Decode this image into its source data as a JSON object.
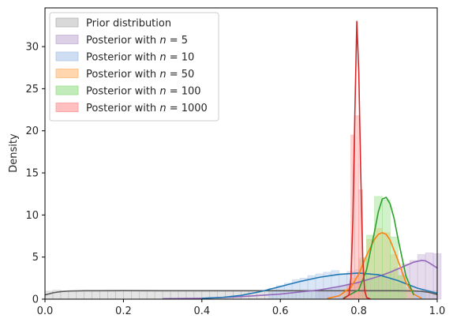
{
  "chart_data": {
    "type": "area",
    "title": "",
    "xlabel": "",
    "ylabel": "Density",
    "xlim": [
      0.0,
      1.0
    ],
    "ylim": [
      0,
      34.6
    ],
    "x_ticks": [
      "0.0",
      "0.2",
      "0.4",
      "0.6",
      "0.8",
      "1.0"
    ],
    "y_ticks": [
      "0",
      "5",
      "10",
      "15",
      "20",
      "25",
      "30"
    ],
    "grid": false,
    "legend_position": "top-left",
    "series": [
      {
        "name": "Prior distribution",
        "name_prefix": "Prior distribution",
        "name_n": "",
        "color": "#595959",
        "hist_color": "#b3b3b3",
        "curve": {
          "x": [
            0.0,
            0.02,
            0.04,
            0.06,
            0.1,
            0.2,
            0.3,
            0.4,
            0.5,
            0.6,
            0.7,
            0.8,
            0.9,
            0.94,
            0.96,
            0.98,
            1.0
          ],
          "y": [
            0.5,
            0.75,
            0.9,
            0.96,
            1.0,
            1.01,
            1.0,
            1.0,
            1.0,
            1.0,
            1.0,
            1.0,
            1.0,
            0.98,
            0.93,
            0.8,
            0.55
          ]
        },
        "hist": {
          "x": [
            0.01,
            0.03,
            0.05,
            0.07,
            0.09,
            0.11,
            0.13,
            0.15,
            0.17,
            0.19,
            0.21,
            0.23,
            0.25,
            0.27,
            0.29,
            0.31,
            0.33,
            0.35,
            0.37,
            0.39,
            0.41,
            0.43,
            0.45,
            0.47,
            0.49,
            0.51,
            0.53,
            0.55,
            0.57,
            0.59,
            0.61,
            0.63,
            0.65,
            0.67,
            0.69,
            0.71,
            0.73,
            0.75,
            0.77,
            0.79,
            0.81,
            0.83,
            0.85,
            0.87,
            0.89,
            0.91,
            0.93,
            0.95,
            0.97,
            0.99
          ],
          "y": [
            0.95,
            1.05,
            0.98,
            1.02,
            0.97,
            1.03,
            0.99,
            1.01,
            0.96,
            1.04,
            1.0,
            0.98,
            1.02,
            0.97,
            1.03,
            1.0,
            0.99,
            1.01,
            0.98,
            1.02,
            1.0,
            0.97,
            1.03,
            1.0,
            0.99,
            1.02,
            0.98,
            1.01,
            1.0,
            0.99,
            1.02,
            0.98,
            1.01,
            1.0,
            0.97,
            1.03,
            1.0,
            0.99,
            1.01,
            0.98,
            1.02,
            1.0,
            0.97,
            1.03,
            1.0,
            0.99,
            1.01,
            0.98,
            1.02,
            1.0
          ],
          "width": 0.02
        }
      },
      {
        "name": "Posterior with n = 5",
        "name_prefix": "Posterior with ",
        "name_n": "5",
        "color": "#9467bd",
        "hist_color": "#c5b0d5",
        "curve": {
          "x": [
            0.3,
            0.4,
            0.5,
            0.6,
            0.7,
            0.75,
            0.8,
            0.85,
            0.88,
            0.9,
            0.92,
            0.94,
            0.96,
            0.97,
            0.98,
            0.99,
            1.0
          ],
          "y": [
            0.05,
            0.1,
            0.3,
            0.6,
            1.1,
            1.5,
            2.0,
            2.7,
            3.2,
            3.6,
            4.0,
            4.4,
            4.6,
            4.55,
            4.3,
            4.0,
            3.7
          ]
        },
        "hist": {
          "x": [
            0.7,
            0.72,
            0.74,
            0.76,
            0.78,
            0.8,
            0.82,
            0.84,
            0.86,
            0.88,
            0.9,
            0.92,
            0.94,
            0.96,
            0.98,
            1.0
          ],
          "y": [
            1.0,
            1.2,
            1.4,
            1.6,
            1.8,
            1.9,
            2.3,
            2.5,
            3.0,
            3.2,
            3.7,
            4.2,
            4.6,
            5.3,
            5.5,
            5.4
          ],
          "width": 0.02
        }
      },
      {
        "name": "Posterior with n = 10",
        "name_prefix": "Posterior with ",
        "name_n": "10",
        "color": "#1f77b4",
        "hist_color": "#aec7e8",
        "curve": {
          "x": [
            0.4,
            0.45,
            0.5,
            0.55,
            0.6,
            0.65,
            0.7,
            0.75,
            0.8,
            0.85,
            0.9,
            0.95,
            1.0
          ],
          "y": [
            0.1,
            0.2,
            0.45,
            0.9,
            1.5,
            2.1,
            2.6,
            2.95,
            3.1,
            2.9,
            2.2,
            1.3,
            0.7
          ]
        },
        "hist": {
          "x": [
            0.58,
            0.6,
            0.62,
            0.64,
            0.66,
            0.68,
            0.7,
            0.72,
            0.74,
            0.76,
            0.78,
            0.8,
            0.82,
            0.84,
            0.86,
            0.88,
            0.9,
            0.92,
            0.94,
            0.96
          ],
          "y": [
            1.3,
            1.6,
            1.9,
            2.3,
            2.5,
            2.8,
            3.0,
            3.2,
            3.4,
            3.0,
            3.3,
            3.5,
            3.1,
            2.9,
            2.6,
            2.3,
            1.8,
            1.4,
            1.0,
            0.7
          ],
          "width": 0.02
        }
      },
      {
        "name": "Posterior with n = 50",
        "name_prefix": "Posterior with ",
        "name_n": "50",
        "color": "#ff7f0e",
        "hist_color": "#ffbb78",
        "curve": {
          "x": [
            0.72,
            0.75,
            0.78,
            0.8,
            0.82,
            0.84,
            0.85,
            0.86,
            0.87,
            0.88,
            0.9,
            0.92,
            0.94,
            0.96
          ],
          "y": [
            0.1,
            0.4,
            1.4,
            3.0,
            5.2,
            7.1,
            7.7,
            7.9,
            7.7,
            7.0,
            4.6,
            2.0,
            0.6,
            0.1
          ]
        },
        "hist": {
          "x": [
            0.77,
            0.79,
            0.81,
            0.83,
            0.85,
            0.87,
            0.89,
            0.91,
            0.93
          ],
          "y": [
            1.2,
            2.5,
            4.6,
            7.1,
            8.4,
            7.9,
            5.3,
            2.8,
            1.2
          ],
          "width": 0.02
        }
      },
      {
        "name": "Posterior with n = 100",
        "name_prefix": "Posterior with ",
        "name_n": "100",
        "color": "#2ca02c",
        "hist_color": "#98df8a",
        "curve": {
          "x": [
            0.76,
            0.8,
            0.82,
            0.84,
            0.85,
            0.86,
            0.87,
            0.88,
            0.89,
            0.9,
            0.92,
            0.94
          ],
          "y": [
            0.1,
            1.1,
            3.5,
            8.0,
            10.4,
            11.9,
            12.1,
            11.3,
            9.6,
            7.2,
            2.8,
            0.5
          ]
        },
        "hist": {
          "x": [
            0.81,
            0.83,
            0.85,
            0.87,
            0.89,
            0.91
          ],
          "y": [
            4.9,
            7.6,
            12.2,
            11.8,
            7.4,
            2.8
          ],
          "width": 0.02
        }
      },
      {
        "name": "Posterior with n = 1000",
        "name_prefix": "Posterior with ",
        "name_n": "1000",
        "color": "#d62728",
        "hist_color": "#ff9896",
        "curve": {
          "x": [
            0.76,
            0.775,
            0.78,
            0.785,
            0.79,
            0.795,
            0.8,
            0.805,
            0.81,
            0.815,
            0.82,
            0.83
          ],
          "y": [
            0.0,
            0.5,
            2.5,
            9.5,
            22.0,
            33.0,
            27.0,
            15.0,
            5.0,
            1.0,
            0.2,
            0.0
          ]
        },
        "hist": {
          "x": [
            0.775,
            0.785,
            0.795,
            0.805,
            0.815
          ],
          "y": [
            1.8,
            19.5,
            21.8,
            13.0,
            1.2
          ],
          "width": 0.01
        }
      }
    ]
  }
}
